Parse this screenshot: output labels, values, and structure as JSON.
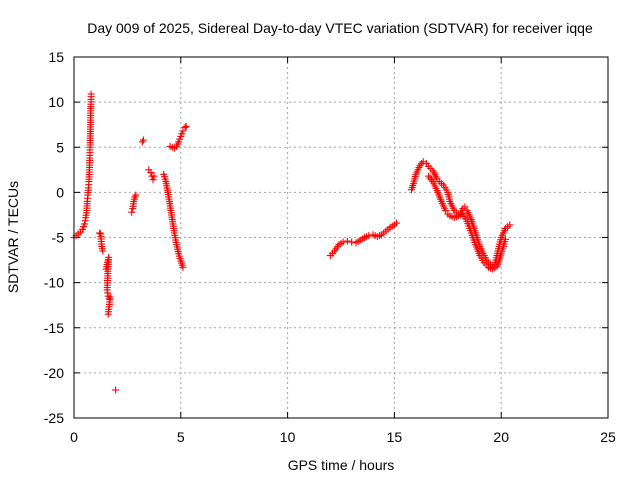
{
  "chart_data": {
    "type": "scatter",
    "title": "Day 009 of 2025, Sidereal Day-to-day VTEC variation (SDTVAR) for receiver iqqe",
    "xlabel": "GPS time / hours",
    "ylabel": "SDTVAR / TECUs",
    "xlim": [
      0,
      25
    ],
    "ylim": [
      -25,
      15
    ],
    "xticks": [
      0,
      5,
      10,
      15,
      20,
      25
    ],
    "yticks": [
      -25,
      -20,
      -15,
      -10,
      -5,
      0,
      5,
      10,
      15
    ],
    "grid": true,
    "marker": "+",
    "color": "#ff0000",
    "series": [
      {
        "name": "SDTVAR",
        "segments": [
          [
            [
              0.0,
              -5.0
            ],
            [
              0.1,
              -4.8
            ],
            [
              0.2,
              -4.6
            ],
            [
              0.3,
              -4.4
            ],
            [
              0.4,
              -4.1
            ],
            [
              0.5,
              -3.5
            ],
            [
              0.55,
              -2.8
            ],
            [
              0.6,
              -2.0
            ],
            [
              0.62,
              -1.0
            ],
            [
              0.65,
              -0.3
            ],
            [
              0.68,
              0.5
            ],
            [
              0.7,
              1.2
            ],
            [
              0.72,
              2.5
            ],
            [
              0.74,
              3.8
            ],
            [
              0.75,
              5.0
            ],
            [
              0.76,
              6.0
            ],
            [
              0.77,
              7.0
            ],
            [
              0.78,
              8.0
            ],
            [
              0.78,
              9.3
            ],
            [
              0.79,
              9.5
            ],
            [
              0.8,
              10.3
            ],
            [
              0.8,
              10.9
            ]
          ],
          [
            [
              1.2,
              -4.5
            ],
            [
              1.25,
              -4.6
            ],
            [
              1.3,
              -6.0
            ],
            [
              1.35,
              -6.5
            ]
          ],
          [
            [
              1.5,
              -8.5
            ],
            [
              1.55,
              -8.0
            ],
            [
              1.6,
              -7.5
            ],
            [
              1.62,
              -7.2
            ],
            [
              1.55,
              -10.8
            ],
            [
              1.6,
              -11.5
            ],
            [
              1.65,
              -11.8
            ],
            [
              1.7,
              -11.6
            ],
            [
              1.6,
              -13.5
            ]
          ],
          [
            [
              1.95,
              -21.9
            ]
          ],
          [
            [
              2.7,
              -2.2
            ],
            [
              2.75,
              -1.8
            ],
            [
              2.8,
              -1.0
            ],
            [
              2.85,
              -0.5
            ],
            [
              2.9,
              -0.3
            ]
          ],
          [
            [
              3.2,
              5.6
            ],
            [
              3.25,
              5.8
            ]
          ],
          [
            [
              3.5,
              2.5
            ],
            [
              3.6,
              2.2
            ],
            [
              3.65,
              1.8
            ],
            [
              3.7,
              1.4
            ],
            [
              3.75,
              1.8
            ]
          ],
          [
            [
              4.2,
              2.0
            ],
            [
              4.3,
              1.2
            ],
            [
              4.4,
              0.0
            ],
            [
              4.5,
              -1.5
            ],
            [
              4.6,
              -3.0
            ],
            [
              4.7,
              -4.5
            ],
            [
              4.8,
              -5.8
            ],
            [
              4.9,
              -6.8
            ],
            [
              5.0,
              -7.6
            ],
            [
              5.1,
              -8.3
            ]
          ],
          [
            [
              4.5,
              5.1
            ],
            [
              4.6,
              5.0
            ],
            [
              4.7,
              4.9
            ],
            [
              4.8,
              5.1
            ],
            [
              4.9,
              5.6
            ],
            [
              5.0,
              6.2
            ],
            [
              5.1,
              6.8
            ],
            [
              5.2,
              7.2
            ],
            [
              5.25,
              7.3
            ]
          ],
          [
            [
              12.0,
              -7.0
            ],
            [
              12.2,
              -6.5
            ],
            [
              12.4,
              -5.8
            ],
            [
              12.6,
              -5.5
            ],
            [
              12.8,
              -5.4
            ],
            [
              13.0,
              -5.5
            ],
            [
              13.2,
              -5.6
            ],
            [
              13.4,
              -5.3
            ],
            [
              13.6,
              -5.0
            ],
            [
              13.8,
              -4.8
            ],
            [
              14.0,
              -4.7
            ],
            [
              14.2,
              -4.9
            ],
            [
              14.4,
              -4.7
            ],
            [
              14.6,
              -4.3
            ],
            [
              14.8,
              -3.9
            ],
            [
              15.0,
              -3.6
            ],
            [
              15.1,
              -3.4
            ]
          ],
          [
            [
              15.8,
              0.3
            ],
            [
              15.9,
              1.0
            ],
            [
              16.0,
              2.0
            ],
            [
              16.2,
              3.0
            ],
            [
              16.35,
              3.4
            ],
            [
              16.5,
              3.2
            ],
            [
              16.6,
              2.9
            ],
            [
              16.8,
              2.4
            ],
            [
              17.0,
              1.5
            ],
            [
              17.1,
              1.2
            ],
            [
              17.3,
              0.8
            ],
            [
              17.5,
              0.0
            ],
            [
              17.6,
              -1.0
            ],
            [
              17.8,
              -2.0
            ],
            [
              18.0,
              -2.5
            ],
            [
              18.1,
              -2.3
            ],
            [
              18.2,
              -1.8
            ],
            [
              18.3,
              -1.6
            ],
            [
              18.4,
              -2.0
            ],
            [
              18.6,
              -3.0
            ],
            [
              18.8,
              -4.5
            ],
            [
              19.0,
              -6.0
            ],
            [
              19.2,
              -7.0
            ],
            [
              19.4,
              -7.8
            ],
            [
              19.6,
              -8.2
            ],
            [
              19.7,
              -8.0
            ],
            [
              19.8,
              -7.0
            ],
            [
              19.9,
              -6.0
            ],
            [
              20.0,
              -5.0
            ],
            [
              20.2,
              -4.0
            ],
            [
              20.4,
              -3.6
            ]
          ],
          [
            [
              16.6,
              1.8
            ],
            [
              16.8,
              1.2
            ],
            [
              17.0,
              0.2
            ],
            [
              17.2,
              -1.0
            ],
            [
              17.4,
              -2.0
            ],
            [
              17.5,
              -2.4
            ],
            [
              17.6,
              -2.6
            ],
            [
              17.8,
              -2.8
            ],
            [
              18.0,
              -2.6
            ],
            [
              18.2,
              -2.4
            ],
            [
              18.4,
              -3.2
            ],
            [
              18.6,
              -4.5
            ],
            [
              18.8,
              -5.8
            ],
            [
              19.0,
              -7.0
            ],
            [
              19.2,
              -7.8
            ],
            [
              19.4,
              -8.3
            ],
            [
              19.6,
              -8.5
            ],
            [
              19.8,
              -8.2
            ],
            [
              20.0,
              -6.8
            ],
            [
              20.2,
              -5.2
            ]
          ]
        ]
      }
    ]
  }
}
